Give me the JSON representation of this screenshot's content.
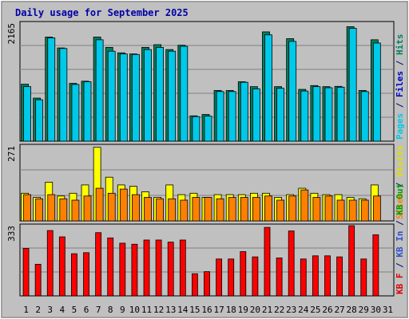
{
  "chart_data": {
    "type": "bar",
    "title": "Daily usage for September 2025",
    "categories": [
      "1",
      "2",
      "3",
      "4",
      "5",
      "6",
      "7",
      "8",
      "9",
      "10",
      "11",
      "12",
      "13",
      "14",
      "15",
      "16",
      "17",
      "18",
      "19",
      "20",
      "21",
      "22",
      "23",
      "24",
      "25",
      "26",
      "27",
      "28",
      "29",
      "30",
      "31"
    ],
    "weekend_days": [
      6,
      7,
      13,
      14,
      20,
      21,
      27,
      28
    ],
    "grid": true,
    "panels": [
      {
        "name": "hits-files-pages",
        "ymax_label": "2165",
        "ylim": [
          0,
          2165
        ],
        "side_labels": [
          {
            "text": "Pages",
            "color": "#00c8e8"
          },
          {
            "text": " / ",
            "color": "#000080"
          },
          {
            "text": "Files",
            "color": "#0000c8"
          },
          {
            "text": " / ",
            "color": "#000080"
          },
          {
            "text": "Hits",
            "color": "#008060"
          }
        ],
        "series": [
          {
            "name": "Hits",
            "color": "#00805c",
            "values": [
              1045,
              790,
              1910,
              1710,
              1060,
              1100,
              1910,
              1720,
              1620,
              1600,
              1720,
              1770,
              1680,
              1760,
              465,
              490,
              930,
              930,
              1090,
              1000,
              2005,
              1000,
              1880,
              950,
              1020,
              1000,
              1005,
              2100,
              930,
              1860,
              0
            ]
          },
          {
            "name": "Files",
            "color": "#00c8e8",
            "values": [
              1000,
              760,
              1895,
              1700,
              1040,
              1090,
              1860,
              1650,
              1600,
              1590,
              1680,
              1720,
              1650,
              1740,
              450,
              460,
              910,
              910,
              1080,
              960,
              1950,
              970,
              1830,
              920,
              1000,
              980,
              990,
              2070,
              910,
              1800,
              0
            ]
          }
        ]
      },
      {
        "name": "visits-sites",
        "ymax_label": "271",
        "ylim": [
          0,
          271
        ],
        "side_labels": [
          {
            "text": "Sites",
            "color": "#ff8000"
          },
          {
            "text": " / ",
            "color": "#000080"
          },
          {
            "text": "Visits",
            "color": "#e0e000"
          }
        ],
        "series": [
          {
            "name": "Visits",
            "color": "#ffff00",
            "values": [
              100,
              85,
              140,
              90,
              100,
              130,
              266,
              158,
              130,
              125,
              105,
              85,
              130,
              95,
              100,
              85,
              95,
              95,
              95,
              100,
              100,
              85,
              95,
              118,
              100,
              95,
              95,
              85,
              80,
              130,
              0
            ]
          },
          {
            "name": "Sites",
            "color": "#ff8000",
            "values": [
              95,
              80,
              95,
              80,
              75,
              90,
              118,
              100,
              115,
              95,
              85,
              80,
              80,
              75,
              85,
              85,
              80,
              85,
              85,
              85,
              90,
              75,
              90,
              112,
              85,
              90,
              75,
              75,
              75,
              90,
              0
            ]
          }
        ]
      },
      {
        "name": "kbf-kbin-kbout",
        "ymax_label": "333",
        "ylim": [
          0,
          333
        ],
        "side_labels": [
          {
            "text": "KB F",
            "color": "#e00000"
          },
          {
            "text": " / ",
            "color": "#000080"
          },
          {
            "text": "KB In",
            "color": "#3050d0"
          },
          {
            "text": " / ",
            "color": "#000080"
          },
          {
            "text": "KB Out",
            "color": "#00a000"
          }
        ],
        "series": [
          {
            "name": "KB F",
            "color": "#ff0000",
            "values": [
              225,
              150,
              310,
              280,
              200,
              205,
              300,
              275,
              250,
              245,
              265,
              265,
              255,
              265,
              105,
              115,
              175,
              175,
              210,
              185,
              325,
              180,
              308,
              175,
              190,
              190,
              185,
              333,
              175,
              290,
              0
            ]
          }
        ]
      }
    ]
  }
}
